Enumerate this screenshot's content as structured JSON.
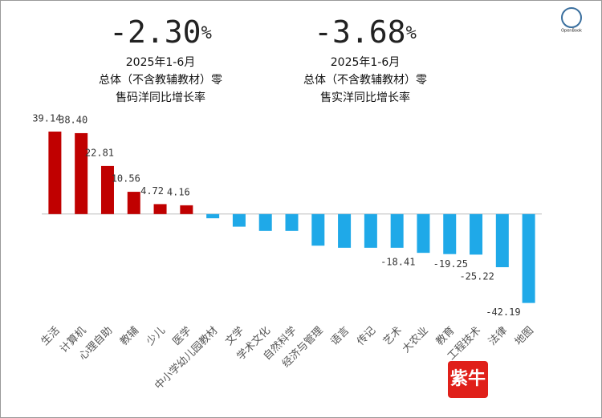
{
  "chart_data": {
    "type": "bar",
    "headlines": [
      {
        "value": "-2.30",
        "unit": "%",
        "lines": [
          "2025年1-6月",
          "总体（不含教辅教材）零",
          "售码洋同比增长率"
        ]
      },
      {
        "value": "-3.68",
        "unit": "%",
        "lines": [
          "2025年1-6月",
          "总体（不含教辅教材）零",
          "售实洋同比增长率"
        ]
      }
    ],
    "categories": [
      "生活",
      "计算机",
      "心理自助",
      "教辅",
      "少儿",
      "医学",
      "中小学幼儿园教材",
      "文学",
      "学术文化",
      "自然科学",
      "经济与管理",
      "语言",
      "传记",
      "艺术",
      "大农业",
      "教育",
      "工程技术",
      "法律",
      "地图"
    ],
    "values": [
      39.14,
      38.4,
      22.81,
      10.56,
      4.72,
      4.16,
      -2,
      -6,
      -8,
      -8,
      -15,
      -16,
      -16,
      -16,
      -18.41,
      -19,
      -19.25,
      -25.22,
      -42.19
    ],
    "value_labels": [
      "39.14",
      "38.40",
      "22.81",
      "10.56",
      "4.72",
      "4.16",
      null,
      null,
      null,
      null,
      null,
      null,
      null,
      null,
      "-18.41",
      null,
      "-19.25",
      "-25.22",
      "-42.19"
    ],
    "positive_color": "#c00000",
    "negative_color": "#1fa9e8",
    "ylim": [
      -45,
      42
    ],
    "logo": "OpenBook",
    "stamp": "紫牛"
  }
}
